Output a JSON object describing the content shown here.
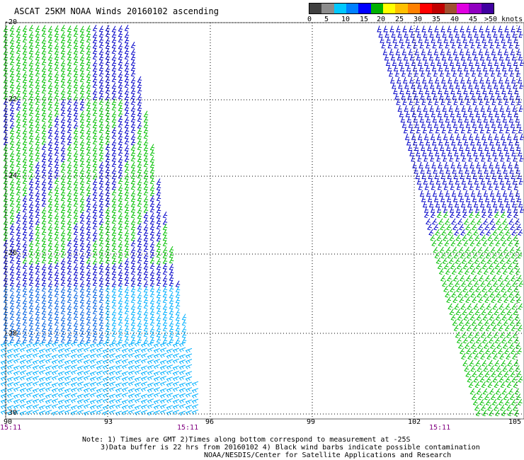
{
  "title": "ASCAT 25KM NOAA Winds 20160102 ascending",
  "legend": {
    "labels": [
      "0",
      "5",
      "10",
      "15",
      "20",
      "25",
      "30",
      "35",
      "40",
      "45",
      ">50 knots"
    ],
    "colors": [
      "#404040",
      "#8c8c8c",
      "#00c8ff",
      "#0080ff",
      "#0000ff",
      "#00b000",
      "#ffff00",
      "#ffc000",
      "#ff8000",
      "#ff0000",
      "#c00000",
      "#a05030",
      "#e000e0",
      "#9000c0",
      "#4000a0"
    ]
  },
  "axes": {
    "latitudes": [
      "-20",
      "-22",
      "-24",
      "-26",
      "-28",
      "-30"
    ],
    "longitudes": [
      "90",
      "93",
      "96",
      "99",
      "102",
      "105"
    ]
  },
  "times": [
    "15:11",
    "15:11",
    "15:11"
  ],
  "notes": {
    "line1": "Note: 1) Times are GMT 2)Times along bottom correspond to measurement at -25S",
    "line2": "3)Data buffer is 22 hrs from 20160102 4) Black wind barbs indicate possible contamination",
    "line3": "NOAA/NESDIS/Center for Satellite Applications and Research"
  },
  "barb_colors": {
    "green": "#00c000",
    "blue": "#0000c8",
    "mid_blue": "#0060e0",
    "light_blue": "#00b0ff"
  }
}
